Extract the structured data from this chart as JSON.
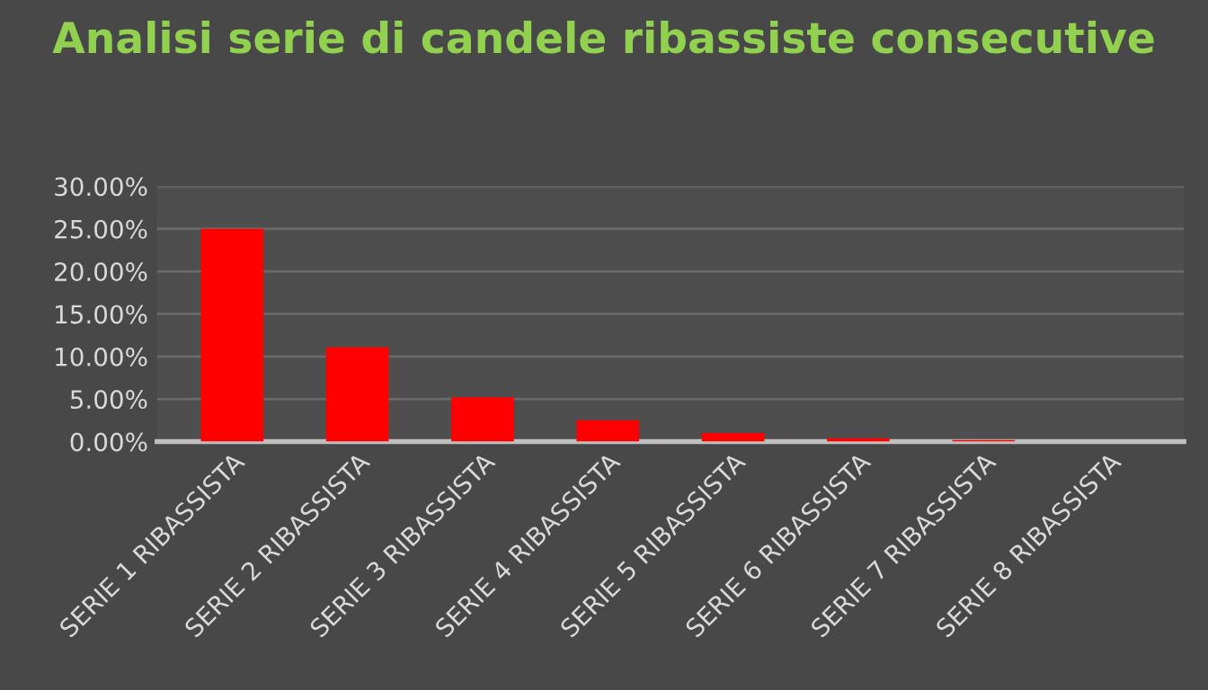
{
  "chart_data": {
    "type": "bar",
    "title": "Analisi serie di candele ribassiste consecutive",
    "categories": [
      "SERIE 1 RIBASSISTA",
      "SERIE 2 RIBASSISTA",
      "SERIE 3 RIBASSISTA",
      "SERIE 4 RIBASSISTA",
      "SERIE 5 RIBASSISTA",
      "SERIE 6 RIBASSISTA",
      "SERIE 7 RIBASSISTA",
      "SERIE 8 RIBASSISTA"
    ],
    "values": [
      25.0,
      11.1,
      5.2,
      2.5,
      1.0,
      0.4,
      0.2,
      null
    ],
    "color": "#ff0000",
    "ylim": [
      0,
      30
    ],
    "yticks": [
      {
        "value": 0,
        "label": "0.00%"
      },
      {
        "value": 5,
        "label": "5.00%"
      },
      {
        "value": 10,
        "label": "10.00%"
      },
      {
        "value": 15,
        "label": "15.00%"
      },
      {
        "value": 20,
        "label": "20.00%"
      },
      {
        "value": 25,
        "label": "25.00%"
      },
      {
        "value": 30,
        "label": "30.00%"
      }
    ],
    "grid": "y"
  }
}
